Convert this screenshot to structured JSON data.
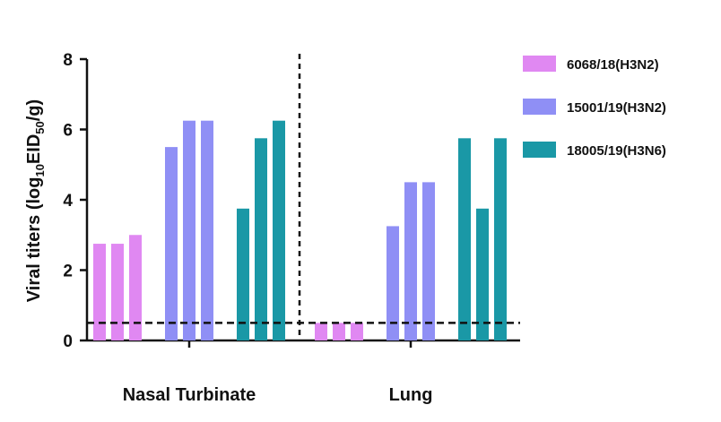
{
  "chart_data": {
    "type": "bar",
    "y_label": [
      "Viral titers (log",
      "10",
      "EID",
      "50",
      "/g)"
    ],
    "categories": [
      "Nasal Turbinate",
      "Lung"
    ],
    "series": [
      {
        "name": "6068/18(H3N2)",
        "color": "#e088f2",
        "values": [
          [
            2.75,
            2.75,
            3.0
          ],
          [
            0.5,
            0.5,
            0.5
          ]
        ]
      },
      {
        "name": "15001/19(H3N2)",
        "color": "#8f8ff5",
        "values": [
          [
            5.5,
            6.25,
            6.25
          ],
          [
            3.25,
            4.5,
            4.5
          ]
        ]
      },
      {
        "name": "18005/19(H3N6)",
        "color": "#1a98a6",
        "values": [
          [
            3.75,
            5.75,
            6.25
          ],
          [
            5.75,
            3.75,
            5.75
          ]
        ]
      }
    ],
    "threshold": 0.5,
    "ylim": [
      0,
      8
    ],
    "yticks": [
      0,
      2,
      4,
      6,
      8
    ],
    "grid": false,
    "legend": "right"
  }
}
